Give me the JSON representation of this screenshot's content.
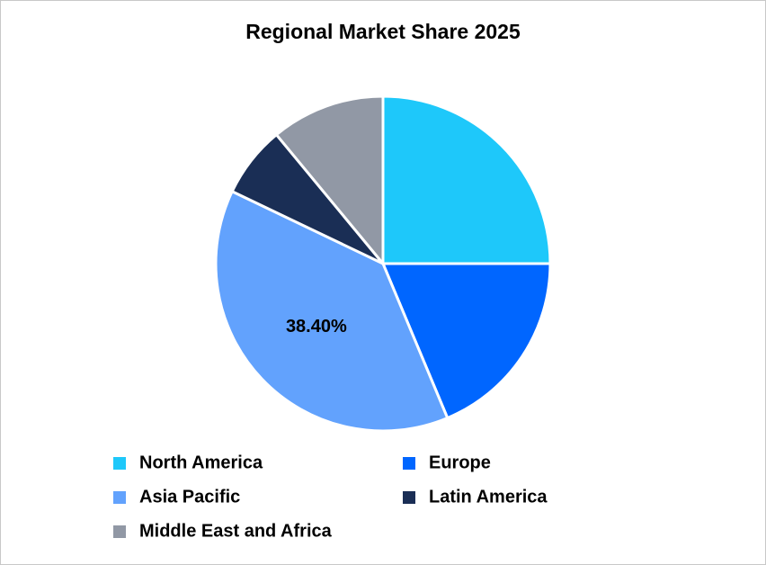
{
  "chart_data": {
    "type": "pie",
    "title": "Regional Market Share 2025",
    "categories": [
      "North America",
      "Europe",
      "Asia Pacific",
      "Latin America",
      "Middle East and Africa"
    ],
    "values": [
      25.0,
      18.7,
      38.4,
      6.9,
      11.0
    ],
    "value_labels": [
      null,
      null,
      "38.40%",
      null,
      null
    ],
    "colors": [
      "#1ec8fa",
      "#0066ff",
      "#62a2fd",
      "#1a2e55",
      "#9198a5"
    ],
    "legend": "bottom"
  }
}
